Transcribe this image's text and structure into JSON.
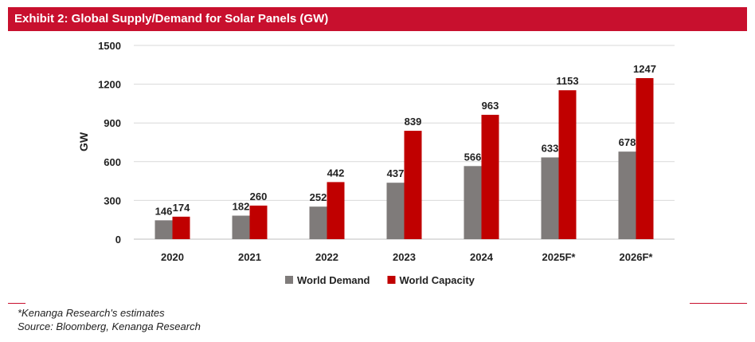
{
  "header": {
    "title": "Exhibit 2: Global Supply/Demand for Solar Panels (GW)"
  },
  "footer": {
    "note": "*Kenanga Research's estimates",
    "source": "Source: Bloomberg, Kenanga Research"
  },
  "colors": {
    "header_bg": "#c8102e",
    "demand": "#7f7b7a",
    "capacity": "#c00000",
    "grid": "#d9d9d9"
  },
  "chart_data": {
    "type": "bar",
    "title": "",
    "xlabel": "",
    "ylabel": "GW",
    "ylim": [
      0,
      1500
    ],
    "yticks": [
      0,
      300,
      600,
      900,
      1200,
      1500
    ],
    "grid": true,
    "legend_position": "bottom",
    "categories": [
      "2020",
      "2021",
      "2022",
      "2023",
      "2024",
      "2025F*",
      "2026F*"
    ],
    "series": [
      {
        "name": "World Demand",
        "color": "#7f7b7a",
        "values": [
          146,
          182,
          252,
          437,
          566,
          633,
          678
        ]
      },
      {
        "name": "World Capacity",
        "color": "#c00000",
        "values": [
          174,
          260,
          442,
          839,
          963,
          1153,
          1247
        ]
      }
    ]
  }
}
